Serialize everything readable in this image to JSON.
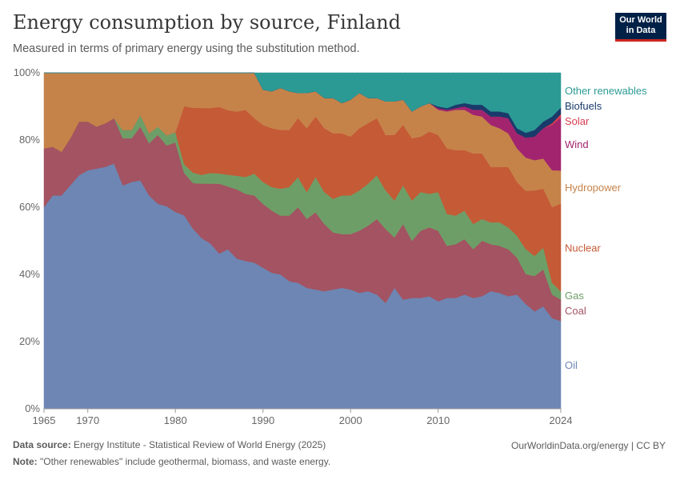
{
  "header": {
    "title": "Energy consumption by source, Finland",
    "subtitle": "Measured in terms of primary energy using the substitution method.",
    "logo_line1": "Our World",
    "logo_line2": "in Data"
  },
  "footer": {
    "source_label": "Data source:",
    "source_text": " Energy Institute - Statistical Review of World Energy (2025)",
    "note_label": "Note:",
    "note_text": " \"Other renewables\" include geothermal, biomass, and waste energy.",
    "credit": "OurWorldinData.org/energy | CC BY"
  },
  "chart_data": {
    "type": "area",
    "stacked": true,
    "title": "Energy consumption by source, Finland",
    "ylim": [
      0,
      100
    ],
    "yticks": [
      0,
      20,
      40,
      60,
      80,
      100
    ],
    "ytick_labels": [
      "0%",
      "20%",
      "40%",
      "60%",
      "80%",
      "100%"
    ],
    "xticks": [
      1965,
      1970,
      1980,
      1990,
      2000,
      2010,
      2024
    ],
    "grid": true,
    "legend_position": "right",
    "x": [
      1965,
      1966,
      1967,
      1968,
      1969,
      1970,
      1971,
      1972,
      1973,
      1974,
      1975,
      1976,
      1977,
      1978,
      1979,
      1980,
      1981,
      1982,
      1983,
      1984,
      1985,
      1986,
      1987,
      1988,
      1989,
      1990,
      1991,
      1992,
      1993,
      1994,
      1995,
      1996,
      1997,
      1998,
      1999,
      2000,
      2001,
      2002,
      2003,
      2004,
      2005,
      2006,
      2007,
      2008,
      2009,
      2010,
      2011,
      2012,
      2013,
      2014,
      2015,
      2016,
      2017,
      2018,
      2019,
      2020,
      2021,
      2022,
      2023,
      2024
    ],
    "series": [
      {
        "name": "Oil",
        "color": "#6d86b3",
        "values": [
          60,
          63.5,
          63.5,
          66.5,
          69.5,
          71,
          71.5,
          72,
          73,
          66.5,
          67.5,
          68,
          63.5,
          61,
          60,
          58,
          55,
          51.5,
          48.5,
          47,
          45.5,
          47,
          44.5,
          44,
          43.5,
          42,
          40.5,
          40,
          38,
          37.5,
          36,
          35.5,
          35,
          35.5,
          36,
          35.5,
          34.5,
          35,
          34,
          31.5,
          36,
          32.5,
          33,
          33,
          33.5,
          32,
          33,
          33,
          34,
          33,
          33.5,
          35,
          34.5,
          33.5,
          34,
          31.5,
          29,
          30.5,
          27,
          26.5
        ]
      },
      {
        "name": "Coal",
        "color": "#a35361",
        "values": [
          17.5,
          14.5,
          13,
          14,
          16,
          14.5,
          12.5,
          13,
          13.5,
          14,
          13,
          16,
          15.5,
          20.5,
          18,
          20.5,
          12,
          13,
          15.5,
          17,
          20.5,
          18.5,
          20.5,
          20,
          20,
          19,
          18.5,
          17.5,
          19.5,
          22.5,
          20.5,
          23,
          20,
          17,
          16,
          16.5,
          18.5,
          19.5,
          22.5,
          22,
          15,
          22.5,
          17,
          20,
          20.5,
          21,
          15.5,
          16,
          16.5,
          14.5,
          16.5,
          14,
          14,
          14,
          11,
          9,
          10.5,
          11,
          7,
          6.5
        ]
      },
      {
        "name": "Gas",
        "color": "#6e9e67",
        "values": [
          0,
          0,
          0,
          0,
          0,
          0,
          0,
          0,
          0,
          2.5,
          2.5,
          3.5,
          3,
          2.5,
          3,
          3,
          2.5,
          3,
          2.5,
          3,
          3,
          3.5,
          4,
          5,
          6.5,
          6.5,
          7,
          8,
          8.5,
          9,
          8,
          10.5,
          9.5,
          10,
          11.5,
          11.5,
          12,
          12.5,
          13,
          11.5,
          11,
          11.5,
          12,
          11.5,
          10,
          11.5,
          9.5,
          8.5,
          8.5,
          7.5,
          6.5,
          6.5,
          7,
          6.5,
          6.5,
          7.5,
          6,
          6.5,
          3.5,
          2.5
        ]
      },
      {
        "name": "Nuclear",
        "color": "#c55a36",
        "values": [
          0,
          0,
          0,
          0,
          0,
          0,
          0,
          0,
          0,
          0,
          0,
          0,
          0,
          0,
          0,
          0,
          16.5,
          18.5,
          19,
          18.5,
          19.5,
          19,
          19,
          20,
          16.5,
          17,
          17.5,
          17.5,
          17,
          17.5,
          19,
          18,
          19,
          19.5,
          18.5,
          17.5,
          18.5,
          18,
          17,
          16.5,
          19.5,
          18,
          18.5,
          16.5,
          18.5,
          17,
          19.5,
          19.5,
          18,
          21,
          19.5,
          16.5,
          16.5,
          18,
          16,
          17.5,
          19.5,
          17.5,
          22.5,
          26.5
        ]
      },
      {
        "name": "Hydropower",
        "color": "#c5834a",
        "values": [
          22.5,
          22,
          23.5,
          19.5,
          14.5,
          14.5,
          16,
          15,
          13.5,
          17,
          17,
          12.5,
          18,
          16,
          18.5,
          17.5,
          9.5,
          10,
          10,
          10,
          10,
          11,
          11.5,
          11,
          13.5,
          10.5,
          11,
          12.5,
          11.5,
          7.5,
          10.5,
          7.5,
          9,
          10.5,
          9,
          11,
          10.5,
          7.5,
          6,
          10,
          10,
          7.5,
          8,
          9,
          8.5,
          7.5,
          11,
          12,
          12,
          11.5,
          11,
          12.5,
          11.5,
          10,
          10,
          10,
          9,
          9,
          11,
          10
        ]
      },
      {
        "name": "Wind",
        "color": "#a2246f",
        "values": [
          0,
          0,
          0,
          0,
          0,
          0,
          0,
          0,
          0,
          0,
          0,
          0,
          0,
          0,
          0,
          0,
          0,
          0,
          0,
          0,
          0,
          0,
          0,
          0,
          0,
          0,
          0,
          0,
          0,
          0,
          0,
          0,
          0,
          0,
          0,
          0,
          0,
          0,
          0,
          0,
          0,
          0,
          0,
          0,
          0,
          0.5,
          0.5,
          0.5,
          1,
          1.5,
          2,
          2.5,
          3.5,
          4.5,
          4.5,
          6,
          7,
          9,
          13.5,
          16
        ]
      },
      {
        "name": "Solar",
        "color": "#d73c50",
        "values": [
          0,
          0,
          0,
          0,
          0,
          0,
          0,
          0,
          0,
          0,
          0,
          0,
          0,
          0,
          0,
          0,
          0,
          0,
          0,
          0,
          0,
          0,
          0,
          0,
          0,
          0,
          0,
          0,
          0,
          0,
          0,
          0,
          0,
          0,
          0,
          0,
          0,
          0,
          0,
          0,
          0,
          0,
          0,
          0,
          0,
          0,
          0,
          0,
          0,
          0,
          0,
          0,
          0,
          0,
          0,
          0,
          0,
          0,
          0.5,
          1
        ]
      },
      {
        "name": "Biofuels",
        "color": "#1a3a6b",
        "values": [
          0,
          0,
          0,
          0,
          0,
          0,
          0,
          0,
          0,
          0,
          0,
          0,
          0,
          0,
          0,
          0,
          0,
          0,
          0,
          0,
          0,
          0,
          0,
          0,
          0,
          0,
          0,
          0,
          0,
          0,
          0,
          0,
          0,
          0,
          0,
          0,
          0,
          0,
          0,
          0,
          0,
          0,
          0,
          0,
          0,
          0.5,
          0.5,
          1,
          1,
          1.5,
          1.5,
          1.5,
          1.5,
          1.5,
          1.5,
          1.5,
          2,
          2,
          2,
          2
        ]
      },
      {
        "name": "Other renewables",
        "color": "#2c9a94",
        "values": [
          0,
          0,
          0,
          0,
          0,
          0,
          0,
          0,
          0,
          0,
          0,
          0,
          0,
          0,
          0,
          0,
          0,
          0,
          0,
          0,
          0,
          0,
          0,
          0,
          0,
          5,
          5.5,
          4.5,
          5.5,
          6,
          6,
          5.5,
          7.5,
          7.5,
          9,
          8,
          6,
          7.5,
          7.5,
          8.5,
          8.5,
          8,
          11.5,
          10,
          9,
          10,
          10.5,
          9.5,
          9,
          9.5,
          9.5,
          11.5,
          11.5,
          12,
          16.5,
          18,
          17,
          14.5,
          13,
          10.5
        ]
      }
    ]
  }
}
